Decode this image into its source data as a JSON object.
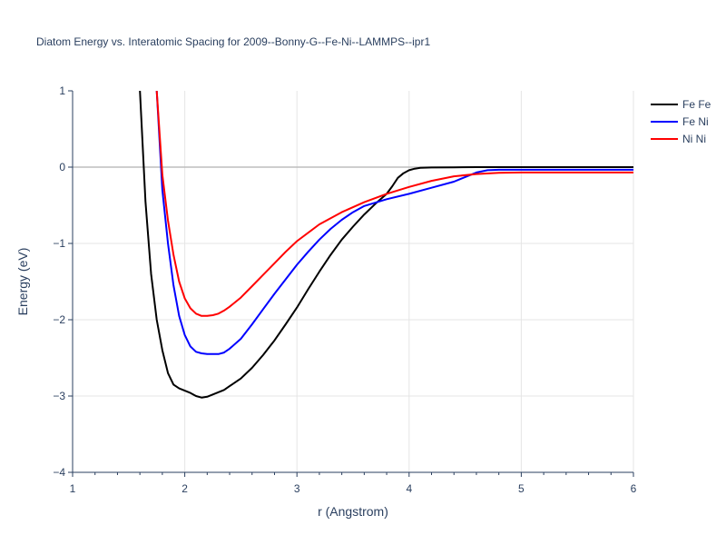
{
  "chart_data": {
    "type": "line",
    "title": "Diatom Energy vs. Interatomic Spacing for 2009--Bonny-G--Fe-Ni--LAMMPS--ipr1",
    "xlabel": "r (Angstrom)",
    "ylabel": "Energy (eV)",
    "xlim": [
      1,
      6
    ],
    "ylim": [
      -4,
      1
    ],
    "xticks": [
      "1",
      "2",
      "3",
      "4",
      "5",
      "6"
    ],
    "yticks": [
      "1",
      "0",
      "−1",
      "−2",
      "−3",
      "−4"
    ],
    "grid": true,
    "legend_position": "top-right",
    "series": [
      {
        "name": "Fe Fe",
        "color": "#000000",
        "x": [
          1.6,
          1.65,
          1.7,
          1.75,
          1.8,
          1.85,
          1.9,
          1.95,
          2.0,
          2.05,
          2.1,
          2.15,
          2.2,
          2.25,
          2.3,
          2.35,
          2.4,
          2.5,
          2.6,
          2.7,
          2.8,
          2.9,
          3.0,
          3.1,
          3.2,
          3.3,
          3.4,
          3.5,
          3.6,
          3.7,
          3.8,
          3.85,
          3.9,
          3.95,
          4.0,
          4.05,
          4.1,
          4.2,
          4.4,
          4.6,
          4.8,
          5.0,
          5.5,
          6.0
        ],
        "y": [
          1.0,
          -0.45,
          -1.4,
          -2.0,
          -2.4,
          -2.7,
          -2.85,
          -2.9,
          -2.93,
          -2.96,
          -3.0,
          -3.02,
          -3.01,
          -2.98,
          -2.95,
          -2.92,
          -2.87,
          -2.77,
          -2.63,
          -2.46,
          -2.27,
          -2.06,
          -1.84,
          -1.6,
          -1.37,
          -1.15,
          -0.95,
          -0.78,
          -0.62,
          -0.48,
          -0.35,
          -0.25,
          -0.14,
          -0.08,
          -0.04,
          -0.02,
          -0.01,
          -0.005,
          -0.002,
          0.0,
          0.0,
          0.0,
          0.0,
          0.0
        ]
      },
      {
        "name": "Fe Ni",
        "color": "#0000ff",
        "x": [
          1.75,
          1.8,
          1.85,
          1.9,
          1.95,
          2.0,
          2.05,
          2.1,
          2.15,
          2.2,
          2.25,
          2.3,
          2.35,
          2.4,
          2.5,
          2.6,
          2.7,
          2.8,
          2.9,
          3.0,
          3.1,
          3.2,
          3.3,
          3.4,
          3.5,
          3.6,
          3.8,
          4.0,
          4.2,
          4.4,
          4.5,
          4.6,
          4.7,
          4.8,
          5.0,
          5.5,
          6.0
        ],
        "y": [
          1.0,
          -0.3,
          -1.0,
          -1.55,
          -1.95,
          -2.2,
          -2.35,
          -2.42,
          -2.44,
          -2.45,
          -2.45,
          -2.45,
          -2.43,
          -2.38,
          -2.25,
          -2.06,
          -1.86,
          -1.66,
          -1.47,
          -1.28,
          -1.11,
          -0.95,
          -0.81,
          -0.69,
          -0.59,
          -0.51,
          -0.42,
          -0.35,
          -0.27,
          -0.19,
          -0.13,
          -0.07,
          -0.04,
          -0.035,
          -0.035,
          -0.035,
          -0.035
        ]
      },
      {
        "name": "Ni Ni",
        "color": "#ff0000",
        "x": [
          1.75,
          1.8,
          1.85,
          1.9,
          1.95,
          2.0,
          2.05,
          2.1,
          2.15,
          2.2,
          2.25,
          2.3,
          2.35,
          2.4,
          2.5,
          2.6,
          2.7,
          2.8,
          2.9,
          3.0,
          3.2,
          3.4,
          3.6,
          3.8,
          4.0,
          4.2,
          4.4,
          4.6,
          4.8,
          5.0,
          5.5,
          6.0
        ],
        "y": [
          1.0,
          -0.1,
          -0.7,
          -1.15,
          -1.5,
          -1.72,
          -1.85,
          -1.92,
          -1.95,
          -1.95,
          -1.94,
          -1.92,
          -1.88,
          -1.83,
          -1.71,
          -1.56,
          -1.41,
          -1.26,
          -1.11,
          -0.97,
          -0.75,
          -0.59,
          -0.46,
          -0.35,
          -0.26,
          -0.18,
          -0.12,
          -0.09,
          -0.075,
          -0.07,
          -0.07,
          -0.07
        ]
      }
    ]
  }
}
